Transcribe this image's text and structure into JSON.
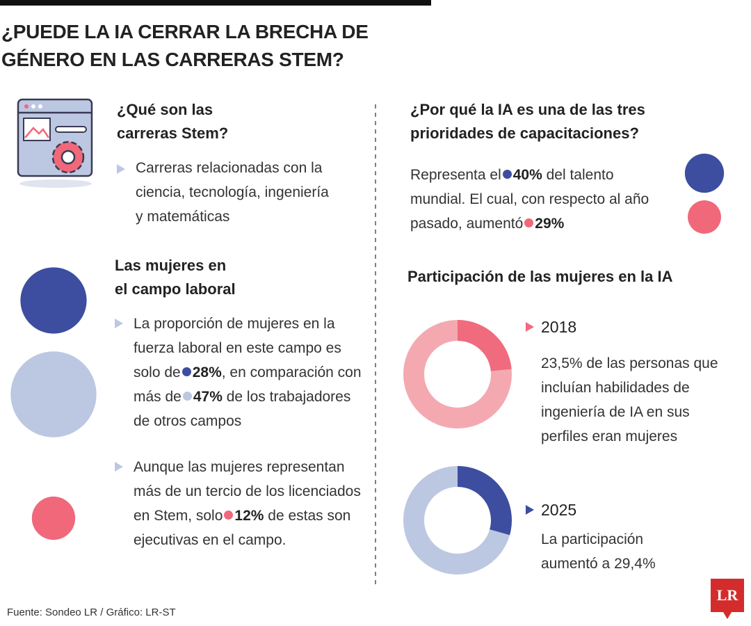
{
  "header": {
    "title_lines": [
      "¿PUEDE LA IA CERRAR LA BRECHA DE",
      "GÉNERO EN LAS CARRERAS STEM?"
    ]
  },
  "stem": {
    "heading_lines": [
      "¿Qué son las",
      "carreras Stem?"
    ],
    "text": "Carreras relacionadas con la ciencia, tecnología, ingeniería y matemáticas"
  },
  "labor": {
    "heading_lines": [
      "Las mujeres en",
      "el campo laboral"
    ],
    "points": [
      {
        "segments": [
          {
            "text": "La proporción de mujeres en la fuerza laboral en este campo es solo de"
          },
          {
            "value": 28,
            "label": "28%",
            "color": "#3d4ea0"
          },
          {
            "text": ", en comparación con más de"
          },
          {
            "value": 47,
            "label": "47%",
            "color": "#bcc8e2"
          },
          {
            "text": " de los trabajadores de otros campos"
          }
        ]
      },
      {
        "segments": [
          {
            "text": "Aunque las mujeres representan más de un tercio de los licenciados en Stem, solo"
          },
          {
            "value": 12,
            "label": "12%",
            "color": "#f0687a"
          },
          {
            "text": " de estas son ejecutivas en el campo."
          }
        ]
      }
    ]
  },
  "priority": {
    "heading_lines": [
      "¿Por qué la IA es una de las tres",
      "prioridades de capacitaciones?"
    ],
    "segments": [
      {
        "text": "Representa el"
      },
      {
        "value": 40,
        "label": "40%",
        "color": "#3d4ea0"
      },
      {
        "text": " del talento mundial. El cual, con respecto al año pasado, aumentó"
      },
      {
        "value": 29,
        "label": "29%",
        "color": "#f0687a"
      }
    ]
  },
  "participation": {
    "heading": "Participación de las mujeres en la IA",
    "items": [
      {
        "year": "2018",
        "value": 23.5,
        "label": "23,5%",
        "after": " de las personas que incluían habilidades de ingeniería de IA en sus perfiles eran mujeres",
        "color": "#ef6b7d",
        "track": "#f4a9b1"
      },
      {
        "year": "2025",
        "value": 29.4,
        "label": "29,4%",
        "before": "La participación aumentó a ",
        "color": "#3d4ea0",
        "track": "#bcc8e2"
      }
    ]
  },
  "footer": {
    "source": "Fuente: Sondeo LR / Gráfico: LR-ST",
    "logo": "LR"
  }
}
